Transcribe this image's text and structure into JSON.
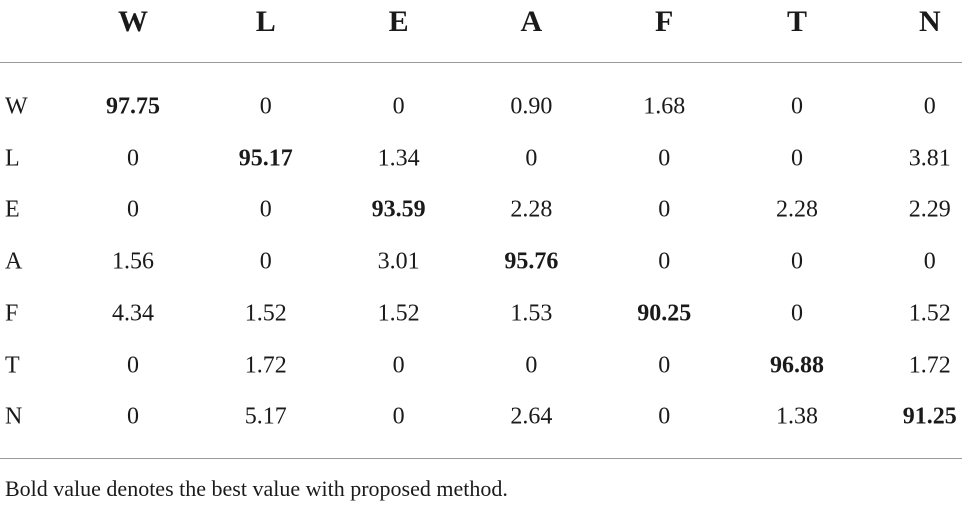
{
  "table": {
    "columns": [
      "W",
      "L",
      "E",
      "A",
      "F",
      "T",
      "N"
    ],
    "rows": [
      {
        "label": "W",
        "cells": [
          {
            "text": "97.75",
            "bold": true
          },
          "0",
          "0",
          "0.90",
          "1.68",
          "0",
          "0"
        ]
      },
      {
        "label": "L",
        "cells": [
          "0",
          {
            "text": "95.17",
            "bold": true
          },
          "1.34",
          "0",
          "0",
          "0",
          "3.81"
        ]
      },
      {
        "label": "E",
        "cells": [
          "0",
          "0",
          {
            "text": "93.59",
            "bold": true
          },
          "2.28",
          "0",
          "2.28",
          "2.29"
        ]
      },
      {
        "label": "A",
        "cells": [
          "1.56",
          "0",
          "3.01",
          {
            "text": "95.76",
            "bold": true
          },
          "0",
          "0",
          "0"
        ]
      },
      {
        "label": "F",
        "cells": [
          "4.34",
          "1.52",
          "1.52",
          "1.53",
          {
            "text": "90.25",
            "bold": true
          },
          "0",
          "1.52"
        ]
      },
      {
        "label": "T",
        "cells": [
          "0",
          "1.72",
          "0",
          "0",
          "0",
          {
            "text": "96.88",
            "bold": true
          },
          "1.72"
        ]
      },
      {
        "label": "N",
        "cells": [
          "0",
          "5.17",
          "0",
          "2.64",
          "0",
          "1.38",
          {
            "text": "91.25",
            "bold": true
          }
        ]
      }
    ],
    "note": "Bold value denotes the best value with proposed method."
  }
}
